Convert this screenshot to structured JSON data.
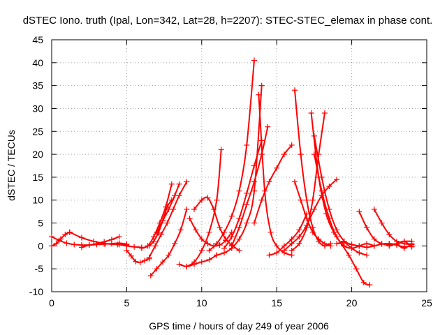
{
  "chart_data": {
    "type": "scatter",
    "title": "dSTEC Iono. truth (Ipal, Lon=342, Lat=28, h=2207): STEC-STEC_elemax in phase cont.",
    "xlabel": "GPS time / hours of day 249 of year 2006",
    "ylabel": "dSTEC  / TECUs",
    "xlim": [
      0,
      25
    ],
    "ylim": [
      -10,
      45
    ],
    "xticks": [
      0,
      5,
      10,
      15,
      20,
      25
    ],
    "yticks": [
      -10,
      -5,
      0,
      5,
      10,
      15,
      20,
      25,
      30,
      35,
      40,
      45
    ],
    "grid": true,
    "marker": "plus",
    "color": "#ff0000",
    "series": [
      {
        "x": [
          0.0,
          0.5,
          1.0,
          1.5,
          2.0,
          2.5,
          3.0,
          3.5,
          4.0,
          4.5,
          5.0
        ],
        "y": [
          2.0,
          1.2,
          0.6,
          0.3,
          0.2,
          0.2,
          0.3,
          0.4,
          0.5,
          0.6,
          0.4
        ]
      },
      {
        "x": [
          0.0,
          0.3,
          0.6,
          0.9,
          1.2
        ],
        "y": [
          0.0,
          0.5,
          1.5,
          2.5,
          3.0
        ]
      },
      {
        "x": [
          1.2,
          2.0,
          2.8,
          3.6,
          4.4,
          5.0
        ],
        "y": [
          3.0,
          1.8,
          1.0,
          0.5,
          0.3,
          0.2
        ]
      },
      {
        "x": [
          2.0,
          2.5,
          3.0,
          3.5,
          4.0,
          4.5
        ],
        "y": [
          -0.3,
          0.2,
          0.5,
          0.9,
          1.4,
          2.0
        ]
      },
      {
        "x": [
          4.0,
          4.5,
          5.0,
          5.5,
          6.0
        ],
        "y": [
          0.5,
          0.3,
          0.0,
          -0.2,
          -0.3
        ]
      },
      {
        "x": [
          5.0,
          5.3,
          5.6,
          5.9,
          6.2,
          6.5
        ],
        "y": [
          -1.0,
          -2.2,
          -3.4,
          -3.6,
          -3.2,
          -2.8
        ]
      },
      {
        "x": [
          6.0,
          6.4,
          6.8,
          7.2,
          7.6,
          8.0
        ],
        "y": [
          -0.5,
          0.0,
          2.0,
          5.0,
          8.5,
          13.5
        ]
      },
      {
        "x": [
          6.5,
          6.8,
          7.1,
          7.4,
          7.7,
          8.0
        ],
        "y": [
          0.0,
          1.0,
          2.8,
          5.5,
          8.5,
          10.0
        ]
      },
      {
        "x": [
          6.5,
          6.9,
          7.3,
          7.7,
          8.1,
          8.5,
          9.0
        ],
        "y": [
          -2.5,
          0.0,
          2.5,
          5.0,
          8.0,
          11.0,
          14.0
        ]
      },
      {
        "x": [
          6.6,
          7.0,
          7.4,
          7.8,
          8.2,
          8.6,
          9.0
        ],
        "y": [
          -6.5,
          -5.0,
          -3.5,
          -2.0,
          0.5,
          3.5,
          8.0
        ]
      },
      {
        "x": [
          7.0,
          7.4,
          7.8,
          8.2,
          8.5
        ],
        "y": [
          3.0,
          5.5,
          8.0,
          11.0,
          13.5
        ]
      },
      {
        "x": [
          8.5,
          9.0,
          9.5,
          10.0,
          10.5,
          11.0
        ],
        "y": [
          -4.0,
          -4.5,
          -4.0,
          -3.5,
          -3.0,
          -2.0
        ]
      },
      {
        "x": [
          9.0,
          9.5,
          10.0,
          10.5,
          11.0,
          11.3
        ],
        "y": [
          -4.5,
          -3.5,
          -1.0,
          3.0,
          10.0,
          21.0
        ]
      },
      {
        "x": [
          9.2,
          9.6,
          10.0,
          10.4,
          10.8,
          11.2,
          11.6,
          12.0
        ],
        "y": [
          6.0,
          3.5,
          1.5,
          0.5,
          0.0,
          0.2,
          1.2,
          3.0
        ]
      },
      {
        "x": [
          9.5,
          10.0,
          10.4,
          10.8,
          11.2,
          11.6,
          12.0,
          12.5
        ],
        "y": [
          8.0,
          10.0,
          10.5,
          8.0,
          4.0,
          1.5,
          0.2,
          -1.0
        ]
      },
      {
        "x": [
          10.5,
          11.0,
          11.5,
          12.0,
          12.5,
          13.0,
          13.5
        ],
        "y": [
          -1.0,
          0.5,
          3.0,
          6.5,
          12.0,
          22.0,
          40.5
        ]
      },
      {
        "x": [
          11.0,
          11.5,
          12.0,
          12.5,
          13.0,
          13.5,
          14.0
        ],
        "y": [
          -2.0,
          -1.5,
          -0.5,
          1.5,
          5.0,
          12.0,
          35.0
        ]
      },
      {
        "x": [
          11.5,
          12.0,
          12.5,
          13.0,
          13.5,
          14.0
        ],
        "y": [
          -0.5,
          2.0,
          6.0,
          11.5,
          17.5,
          23.0
        ]
      },
      {
        "x": [
          12.0,
          12.5,
          13.0,
          13.5,
          14.0,
          14.4
        ],
        "y": [
          0.0,
          4.0,
          9.0,
          14.0,
          20.0,
          26.0
        ]
      },
      {
        "x": [
          13.8,
          14.2,
          14.6,
          15.0,
          15.5,
          16.0
        ],
        "y": [
          33.0,
          12.0,
          3.0,
          0.0,
          -1.5,
          -2.0
        ]
      },
      {
        "x": [
          13.5,
          14.0,
          14.5,
          15.0,
          15.5,
          16.0
        ],
        "y": [
          5.0,
          10.0,
          14.0,
          17.0,
          20.0,
          22.0
        ]
      },
      {
        "x": [
          14.5,
          15.0,
          15.5,
          16.0,
          16.5,
          17.0
        ],
        "y": [
          -2.0,
          -1.5,
          0.0,
          1.5,
          3.5,
          7.0
        ]
      },
      {
        "x": [
          16.2,
          16.6,
          17.0,
          17.4,
          17.8,
          18.2,
          18.6
        ],
        "y": [
          34.0,
          20.0,
          10.0,
          4.0,
          1.0,
          0.0,
          0.5
        ]
      },
      {
        "x": [
          16.2,
          16.6,
          17.0,
          17.4,
          17.8,
          18.2,
          18.6
        ],
        "y": [
          14.0,
          10.0,
          6.0,
          3.0,
          1.5,
          0.5,
          0.0
        ]
      },
      {
        "x": [
          16.0,
          16.5,
          17.0,
          17.4,
          17.8,
          18.2
        ],
        "y": [
          -1.0,
          0.5,
          4.0,
          10.0,
          20.0,
          29.0
        ]
      },
      {
        "x": [
          17.3,
          17.8,
          18.3,
          18.8,
          19.3,
          19.8,
          20.3,
          20.8,
          21.2
        ],
        "y": [
          29.0,
          15.0,
          7.0,
          3.0,
          0.5,
          -2.0,
          -5.0,
          -8.0,
          -8.5
        ]
      },
      {
        "x": [
          17.5,
          18.0,
          18.5,
          19.0,
          19.5,
          20.0,
          20.5,
          21.0
        ],
        "y": [
          24.0,
          15.0,
          8.0,
          3.5,
          1.0,
          -0.5,
          -1.5,
          -2.0
        ]
      },
      {
        "x": [
          17.5,
          18.0,
          18.5,
          19.0,
          19.5,
          20.0,
          20.5,
          21.0,
          21.5
        ],
        "y": [
          20.0,
          12.0,
          6.0,
          2.0,
          0.0,
          -0.5,
          0.0,
          0.5,
          0.0
        ]
      },
      {
        "x": [
          15.5,
          16.0,
          16.5,
          17.0,
          17.5,
          18.0,
          18.5,
          19.0
        ],
        "y": [
          -1.0,
          0.5,
          2.0,
          4.5,
          8.0,
          11.0,
          13.0,
          14.5
        ]
      },
      {
        "x": [
          19.0,
          19.5,
          20.0,
          20.5,
          21.0,
          21.5,
          22.0,
          22.5,
          23.0,
          23.5,
          24.0
        ],
        "y": [
          0.5,
          0.8,
          0.3,
          0.0,
          -0.3,
          0.0,
          0.4,
          0.5,
          0.2,
          -0.2,
          0.0
        ]
      },
      {
        "x": [
          20.5,
          21.0,
          21.5,
          22.0,
          22.5,
          23.0,
          23.5,
          24.0
        ],
        "y": [
          7.5,
          4.0,
          1.5,
          0.5,
          0.2,
          0.5,
          1.0,
          1.0
        ]
      },
      {
        "x": [
          21.5,
          22.0,
          22.5,
          23.0,
          23.5,
          24.0
        ],
        "y": [
          8.0,
          5.0,
          2.5,
          1.0,
          0.5,
          0.3
        ]
      },
      {
        "x": [
          22.5,
          23.0,
          23.5,
          24.0
        ],
        "y": [
          0.5,
          0.3,
          -0.5,
          0.5
        ]
      },
      {
        "x": [
          22.5,
          23.0,
          23.5,
          24.0
        ],
        "y": [
          0.0,
          0.5,
          1.0,
          -0.2
        ]
      }
    ]
  }
}
